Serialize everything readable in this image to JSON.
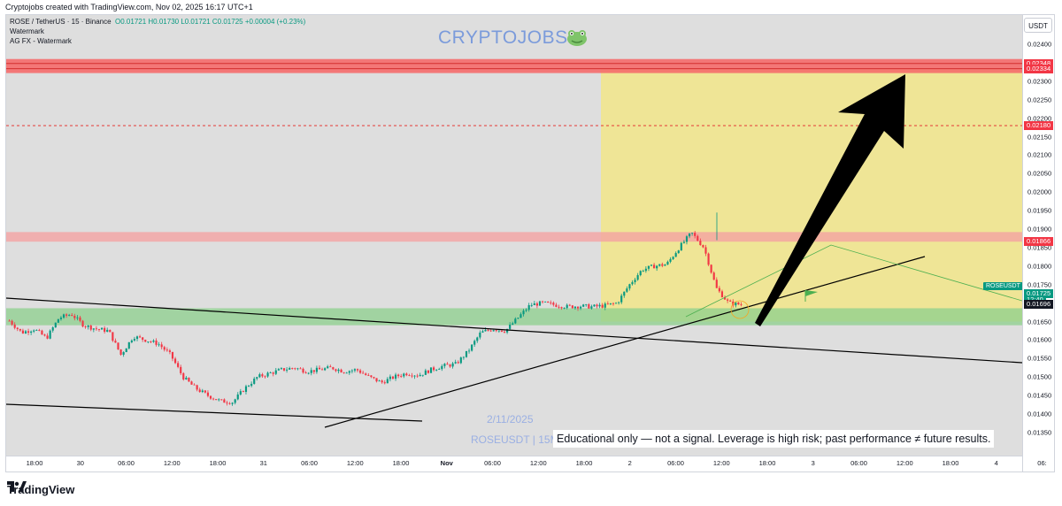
{
  "header": {
    "text": "Cryptojobs created with TradingView.com, Nov 02, 2025 16:17 UTC+1"
  },
  "legend": {
    "title": "ROSE / TetherUS · 15 · Binance",
    "ohlc": "O0.01721 H0.01730 L0.01721 C0.01725 +0.00004 (+0.23%)",
    "line2": "Watermark",
    "line3": "AG FX - Watermark"
  },
  "currency_button": "USDT",
  "watermark": {
    "brand": "CRYPTOJOBS",
    "date": "2/11/2025",
    "symbol": "ROSEUSDT | 15M"
  },
  "disclaimer": "Educational only — not a signal. Leverage is high risk; past performance ≠ future results.",
  "footer": {
    "logo_text": "TradingView"
  },
  "colors": {
    "up": "#089981",
    "down": "#f23645",
    "resistance": "#f23645",
    "support_zone": "#8ccf8c",
    "target_zone": "#f2e68a"
  },
  "chart_data": {
    "type": "candlestick",
    "symbol": "ROSEUSDT",
    "timeframe": "15",
    "exchange": "Binance",
    "x_ticks": [
      "18:00",
      "30",
      "06:00",
      "12:00",
      "18:00",
      "31",
      "06:00",
      "12:00",
      "18:00",
      "Nov",
      "06:00",
      "12:00",
      "18:00",
      "2",
      "06:00",
      "12:00",
      "18:00",
      "3",
      "06:00",
      "12:00",
      "18:00",
      "4",
      "06:"
    ],
    "y_ticks": [
      "0.02400",
      "0.02350",
      "0.02300",
      "0.02250",
      "0.02200",
      "0.02150",
      "0.02100",
      "0.02050",
      "0.02000",
      "0.01950",
      "0.01900",
      "0.01850",
      "0.01800",
      "0.01750",
      "0.01700",
      "0.01650",
      "0.01600",
      "0.01550",
      "0.01500",
      "0.01450",
      "0.01400",
      "0.01350"
    ],
    "ylim": [
      0.01325,
      0.02425
    ],
    "price_tags": [
      {
        "label": "0.02348",
        "color": "#f23645"
      },
      {
        "label": "0.02334",
        "color": "#f23645"
      },
      {
        "label": "0.02180",
        "color": "#f23645"
      },
      {
        "label": "0.01866",
        "color": "#f23645"
      },
      {
        "label": "0.01725",
        "color": "#089981"
      },
      {
        "label": "12:40",
        "color": "#089981"
      },
      {
        "label": "0.01696",
        "color": "#131722"
      }
    ],
    "current_symbol_label": "ROSEUSDT",
    "levels": {
      "resistance_zone": [
        0.02334,
        0.02348
      ],
      "dashed_level": 0.0218,
      "mid_resistance_zone": [
        0.01866,
        0.01892
      ],
      "support_zone": [
        0.0164,
        0.01686
      ]
    },
    "price_path": [
      [
        0,
        0.01652
      ],
      [
        1,
        0.0162
      ],
      [
        2,
        0.0163
      ],
      [
        3,
        0.01605
      ],
      [
        4,
        0.0166
      ],
      [
        5,
        0.0167
      ],
      [
        6,
        0.0164
      ],
      [
        7,
        0.0163
      ],
      [
        8,
        0.01625
      ],
      [
        9,
        0.0156
      ],
      [
        10,
        0.0161
      ],
      [
        11,
        0.016
      ],
      [
        12,
        0.0159
      ],
      [
        13,
        0.0156
      ],
      [
        14,
        0.015
      ],
      [
        15,
        0.0147
      ],
      [
        16,
        0.0145
      ],
      [
        17,
        0.01435
      ],
      [
        18,
        0.01432
      ],
      [
        19,
        0.0147
      ],
      [
        20,
        0.015
      ],
      [
        21,
        0.0151
      ],
      [
        22,
        0.0152
      ],
      [
        23,
        0.01525
      ],
      [
        24,
        0.01515
      ],
      [
        25,
        0.0152
      ],
      [
        26,
        0.01525
      ],
      [
        27,
        0.01515
      ],
      [
        28,
        0.0152
      ],
      [
        29,
        0.015
      ],
      [
        30,
        0.01485
      ],
      [
        31,
        0.015
      ],
      [
        32,
        0.0151
      ],
      [
        33,
        0.01505
      ],
      [
        34,
        0.0152
      ],
      [
        35,
        0.0153
      ],
      [
        36,
        0.01535
      ],
      [
        37,
        0.0157
      ],
      [
        38,
        0.0162
      ],
      [
        39,
        0.0163
      ],
      [
        40,
        0.01625
      ],
      [
        41,
        0.0166
      ],
      [
        42,
        0.01695
      ],
      [
        43,
        0.017
      ],
      [
        44,
        0.01695
      ],
      [
        45,
        0.0169
      ],
      [
        46,
        0.01692
      ],
      [
        47,
        0.0169
      ],
      [
        48,
        0.01693
      ],
      [
        49,
        0.017
      ],
      [
        50,
        0.0175
      ],
      [
        51,
        0.0179
      ],
      [
        52,
        0.018
      ],
      [
        53,
        0.01805
      ],
      [
        54,
        0.0185
      ],
      [
        55,
        0.0189
      ],
      [
        56,
        0.0185
      ],
      [
        57,
        0.0174
      ],
      [
        58,
        0.017
      ],
      [
        59,
        0.01696
      ]
    ]
  }
}
